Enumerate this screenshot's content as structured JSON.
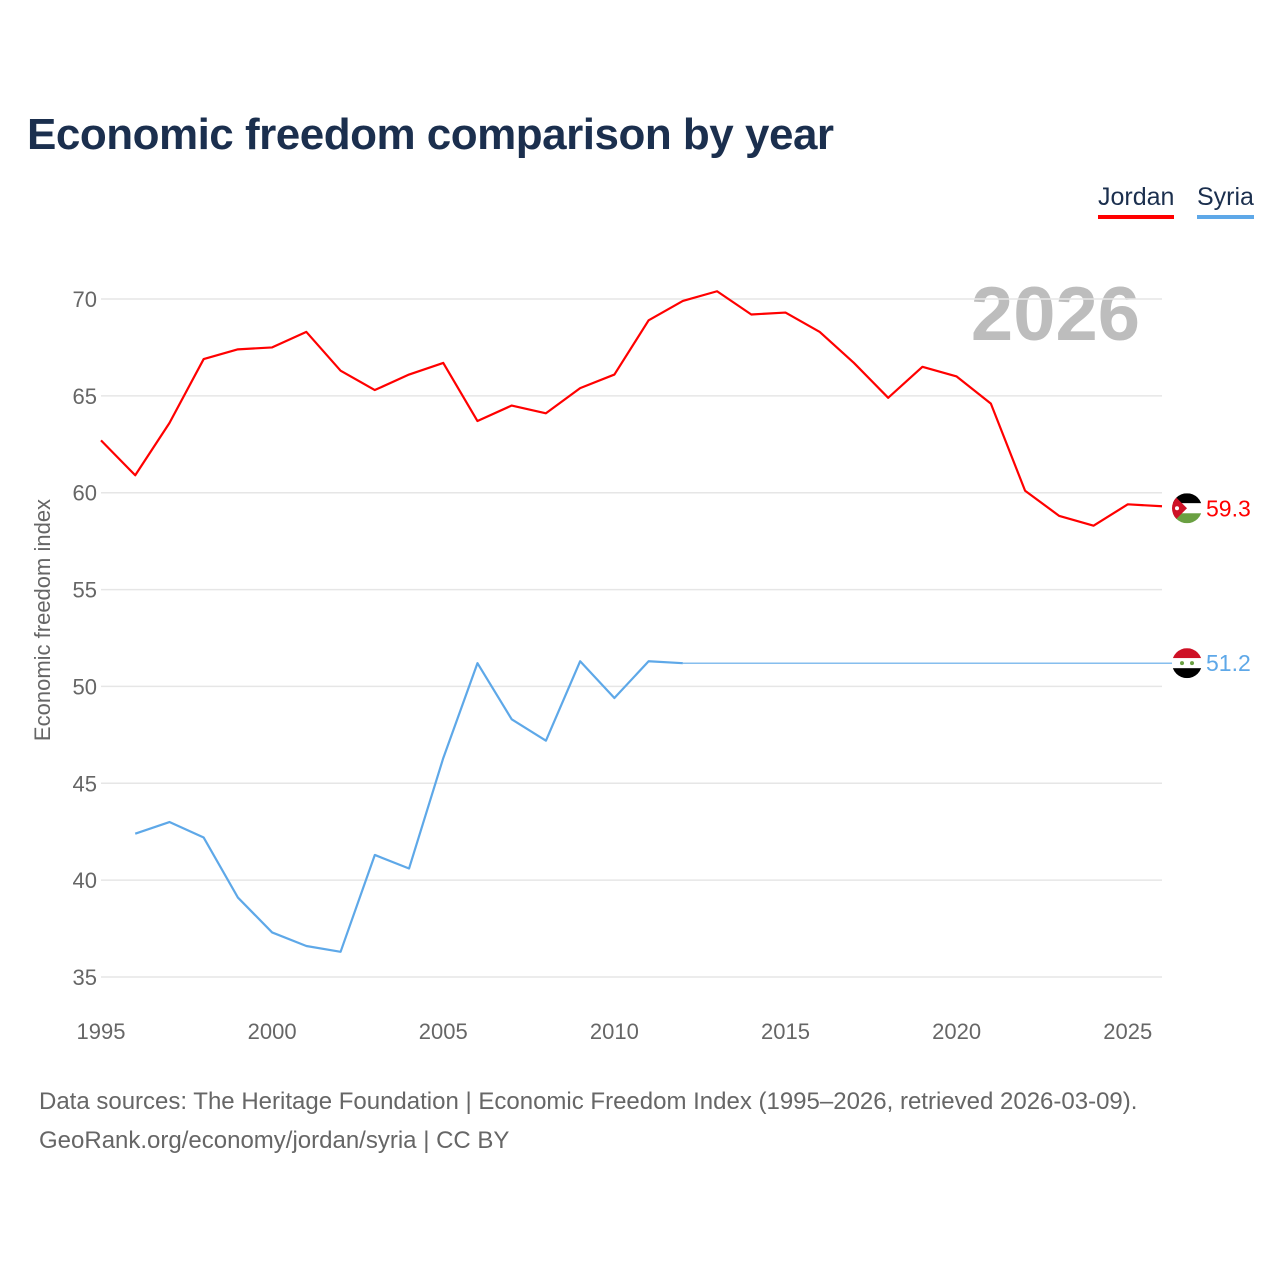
{
  "title": "Economic freedom comparison by year",
  "legend": [
    {
      "label": "Jordan",
      "color": "#ff0000"
    },
    {
      "label": "Syria",
      "color": "#5ea8e8"
    }
  ],
  "footer": {
    "line1": "Data sources: The Heritage Foundation | Economic Freedom Index (1995–2026, retrieved 2026-03-09).",
    "line2": "GeoRank.org/economy/jordan/syria | CC BY"
  },
  "chart_data": {
    "type": "line",
    "title": "Economic freedom comparison by year",
    "ylabel": "Economic freedom index",
    "xlabel": "",
    "year_watermark": "2026",
    "xlim": [
      1995,
      2026
    ],
    "ylim": [
      35,
      70
    ],
    "xticks": [
      1995,
      2000,
      2005,
      2010,
      2015,
      2020,
      2025
    ],
    "yticks": [
      35,
      40,
      45,
      50,
      55,
      60,
      65,
      70
    ],
    "grid": true,
    "legend_position": "top-right",
    "series": [
      {
        "name": "Jordan",
        "color": "#ff0000",
        "end_label": "59.3",
        "flag": "jordan-flag",
        "x": [
          1995,
          1996,
          1997,
          1998,
          1999,
          2000,
          2001,
          2002,
          2003,
          2004,
          2005,
          2006,
          2007,
          2008,
          2009,
          2010,
          2011,
          2012,
          2013,
          2014,
          2015,
          2016,
          2017,
          2018,
          2019,
          2020,
          2021,
          2022,
          2023,
          2024,
          2025,
          2026
        ],
        "y": [
          62.7,
          60.9,
          63.6,
          66.9,
          67.4,
          67.5,
          68.3,
          66.3,
          65.3,
          66.1,
          66.7,
          63.7,
          64.5,
          64.1,
          65.4,
          66.1,
          68.9,
          69.9,
          70.4,
          69.2,
          69.3,
          68.3,
          66.7,
          64.9,
          66.5,
          66.0,
          64.6,
          60.1,
          58.8,
          58.3,
          59.4,
          59.3
        ]
      },
      {
        "name": "Syria",
        "color": "#5ea8e8",
        "end_label": "51.2",
        "flag": "syria-flag",
        "x": [
          1996,
          1997,
          1998,
          1999,
          2000,
          2001,
          2002,
          2003,
          2004,
          2005,
          2006,
          2007,
          2008,
          2009,
          2010,
          2011,
          2012
        ],
        "y": [
          42.4,
          43.0,
          42.2,
          39.1,
          37.3,
          36.6,
          36.3,
          41.3,
          40.6,
          46.3,
          51.2,
          48.3,
          47.2,
          51.3,
          49.4,
          51.3,
          51.2
        ],
        "extrapolated_to": 2026
      }
    ]
  }
}
